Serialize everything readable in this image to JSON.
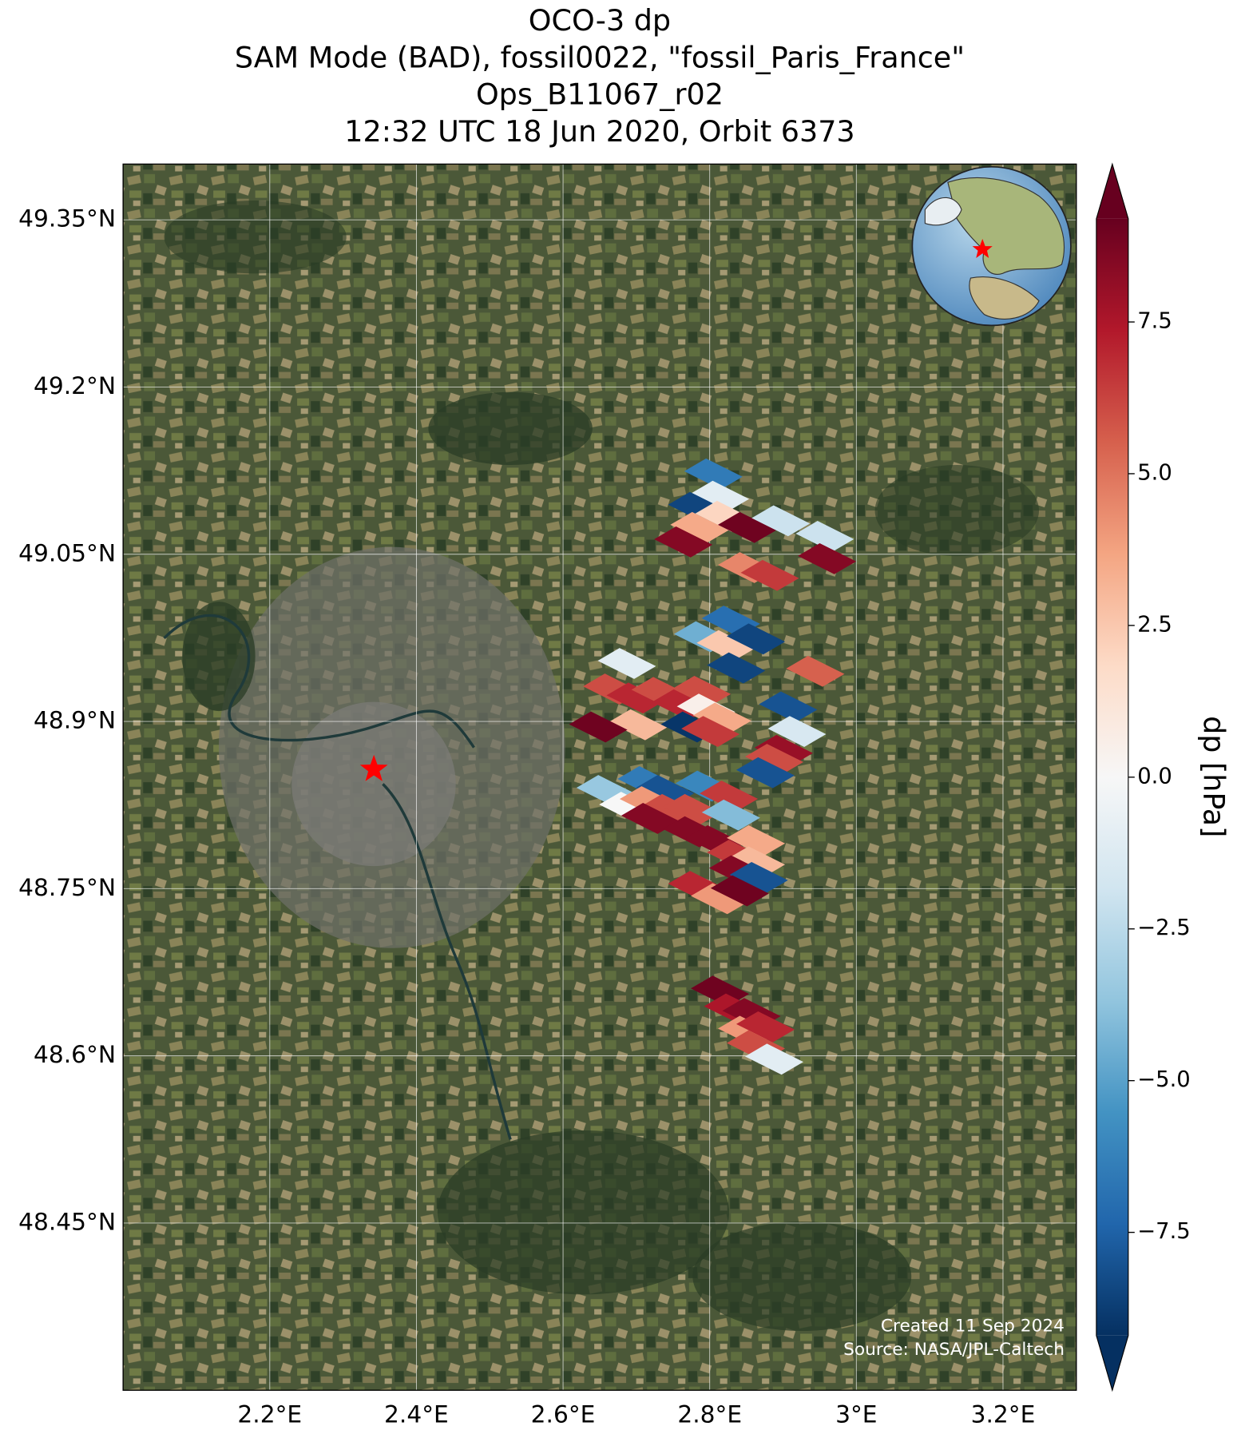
{
  "chart_data": {
    "type": "map",
    "title": [
      "OCO-3 dp",
      "SAM Mode (BAD), fossil0022, \"fossil_Paris_France\"",
      "Ops_B11067_r02",
      "12:32 UTC 18 Jun 2020, Orbit 6373"
    ],
    "xlim": [
      2.0,
      3.3
    ],
    "ylim": [
      48.3,
      49.4
    ],
    "xticks": [
      {
        "value": 2.2,
        "label": "2.2°E"
      },
      {
        "value": 2.4,
        "label": "2.4°E"
      },
      {
        "value": 2.6,
        "label": "2.6°E"
      },
      {
        "value": 2.8,
        "label": "2.8°E"
      },
      {
        "value": 3.0,
        "label": "3°E"
      },
      {
        "value": 3.2,
        "label": "3.2°E"
      }
    ],
    "yticks": [
      {
        "value": 49.35,
        "label": "49.35°N"
      },
      {
        "value": 49.2,
        "label": "49.2°N"
      },
      {
        "value": 49.05,
        "label": "49.05°N"
      },
      {
        "value": 48.9,
        "label": "48.9°N"
      },
      {
        "value": 48.75,
        "label": "48.75°N"
      },
      {
        "value": 48.6,
        "label": "48.6°N"
      },
      {
        "value": 48.45,
        "label": "48.45°N"
      }
    ],
    "grid": true,
    "x": [
      2.805,
      2.814,
      2.783,
      2.82,
      2.786,
      2.851,
      2.764,
      2.897,
      2.957,
      2.96,
      2.851,
      2.882,
      2.829,
      2.791,
      2.822,
      2.863,
      2.836,
      2.687,
      2.667,
      2.699,
      2.733,
      2.761,
      2.789,
      2.795,
      2.817,
      2.702,
      2.773,
      2.801,
      2.648,
      2.907,
      2.944,
      2.919,
      2.901,
      2.888,
      2.876,
      2.658,
      2.689,
      2.714,
      2.739,
      2.717,
      2.745,
      2.719,
      2.776,
      2.793,
      2.826,
      2.829,
      2.776,
      2.807,
      2.836,
      2.863,
      2.863,
      2.839,
      2.867,
      2.783,
      2.814,
      2.841,
      2.814,
      2.832,
      2.857,
      2.851,
      2.876,
      2.863,
      2.888
    ],
    "y": [
      49.122,
      49.102,
      49.092,
      49.084,
      49.074,
      49.074,
      49.061,
      49.08,
      49.066,
      49.046,
      49.038,
      49.031,
      48.99,
      48.976,
      48.968,
      48.974,
      48.948,
      48.952,
      48.929,
      48.921,
      48.926,
      48.915,
      48.927,
      48.911,
      48.903,
      48.897,
      48.895,
      48.891,
      48.895,
      48.913,
      48.945,
      48.891,
      48.874,
      48.866,
      48.854,
      48.838,
      48.823,
      48.846,
      48.838,
      48.828,
      48.821,
      48.813,
      48.821,
      48.842,
      48.833,
      48.816,
      48.801,
      48.793,
      48.78,
      48.793,
      48.774,
      48.766,
      48.76,
      48.752,
      48.741,
      48.748,
      48.658,
      48.642,
      48.638,
      48.622,
      48.626,
      48.609,
      48.597
    ],
    "values": [
      -6.5,
      -1,
      -8.5,
      2,
      3.5,
      9,
      8.5,
      -2,
      -2,
      8.5,
      4.5,
      6.5,
      -7,
      -4.5,
      2.5,
      -8.5,
      -8.5,
      -1,
      6,
      7,
      6,
      7,
      6,
      0.5,
      3.5,
      3,
      -9,
      6.5,
      9,
      -8,
      5.5,
      -1.5,
      8,
      6,
      -8,
      -3.5,
      0,
      -6.5,
      -8,
      4,
      6,
      8.5,
      6,
      -6,
      6.5,
      -4,
      8.5,
      8.5,
      6.5,
      3.5,
      3,
      8.5,
      -8,
      7,
      4,
      9,
      9,
      7.5,
      8.5,
      4,
      7,
      6,
      -1
    ],
    "target_lon": 2.342,
    "target_lat": 48.857,
    "target_color": "#ff0000",
    "colorbar_label": "dp [hPa]",
    "clim": [
      -9.2,
      9.2
    ],
    "cticks": [
      {
        "value": -7.5,
        "label": "−7.5"
      },
      {
        "value": -5,
        "label": "−5.0"
      },
      {
        "value": -2.5,
        "label": "−2.5"
      },
      {
        "value": 0,
        "label": "0.0"
      },
      2.5,
      {
        "value": 5,
        "label": "5.0"
      },
      7.5
    ],
    "colormap": [
      "#053061",
      "#2166ac",
      "#4393c3",
      "#92c5de",
      "#d1e5f0",
      "#f7f7f7",
      "#fddbc7",
      "#f4a582",
      "#d6604d",
      "#b2182b",
      "#67001f"
    ],
    "annotations": [
      "Created 11 Sep 2024",
      "Source: NASA/JPL-Caltech"
    ]
  }
}
